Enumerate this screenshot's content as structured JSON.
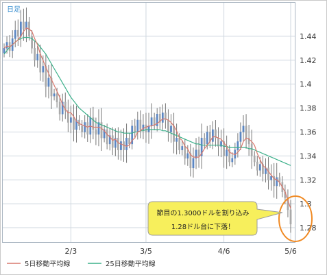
{
  "chart_data": {
    "type": "candlestick",
    "period_label": "日足",
    "y_ticks": [
      "1.28",
      "1.3",
      "1.32",
      "1.34",
      "1.36",
      "1.38",
      "1.4",
      "1.42",
      "1.44"
    ],
    "y_tick_values": [
      1.28,
      1.3,
      1.32,
      1.34,
      1.36,
      1.38,
      1.4,
      1.42,
      1.44
    ],
    "ylim": [
      1.268,
      1.468
    ],
    "x_ticks": [
      {
        "label": "2/3",
        "index": 24
      },
      {
        "label": "3/5",
        "index": 51
      },
      {
        "label": "4/6",
        "index": 79
      },
      {
        "label": "5/6",
        "index": 103
      }
    ],
    "grid": true,
    "legend_position": "bottom",
    "legend": [
      {
        "label": "5日移動平均線",
        "color": "#d9796e"
      },
      {
        "label": "25日移動平均線",
        "color": "#3cb08a"
      }
    ],
    "colors": {
      "up": "#5b86c2",
      "down": "#a9a9a9",
      "ma5": "#d9796e",
      "ma25": "#3cb08a",
      "grid": "#cfd7df",
      "highlight": "#f08a24",
      "callout_fill": "#f7ef5c"
    },
    "annotation": {
      "line1": "節目の1.3000ドルを割り込み",
      "line2": "1.28ドル台に下落！"
    },
    "closes": [
      1.43,
      1.435,
      1.428,
      1.438,
      1.445,
      1.44,
      1.452,
      1.446,
      1.452,
      1.44,
      1.43,
      1.42,
      1.425,
      1.41,
      1.415,
      1.398,
      1.405,
      1.39,
      1.392,
      1.385,
      1.375,
      1.385,
      1.378,
      1.368,
      1.372,
      1.362,
      1.37,
      1.365,
      1.36,
      1.368,
      1.358,
      1.372,
      1.362,
      1.358,
      1.368,
      1.355,
      1.362,
      1.35,
      1.357,
      1.347,
      1.355,
      1.345,
      1.352,
      1.345,
      1.355,
      1.35,
      1.365,
      1.36,
      1.37,
      1.362,
      1.366,
      1.36,
      1.365,
      1.372,
      1.365,
      1.375,
      1.368,
      1.376,
      1.37,
      1.36,
      1.365,
      1.352,
      1.355,
      1.345,
      1.348,
      1.338,
      1.342,
      1.33,
      1.338,
      1.345,
      1.34,
      1.355,
      1.35,
      1.36,
      1.352,
      1.362,
      1.355,
      1.348,
      1.352,
      1.34,
      1.345,
      1.335,
      1.338,
      1.345,
      1.352,
      1.36,
      1.365,
      1.355,
      1.35,
      1.34,
      1.335,
      1.328,
      1.333,
      1.325,
      1.33,
      1.32,
      1.323,
      1.315,
      1.322,
      1.318,
      1.31,
      1.305,
      1.295,
      1.283
    ],
    "ma5": [
      1.43,
      1.432,
      1.431,
      1.433,
      1.435,
      1.437,
      1.44,
      1.444,
      1.447,
      1.446,
      1.444,
      1.438,
      1.433,
      1.425,
      1.42,
      1.414,
      1.409,
      1.404,
      1.399,
      1.394,
      1.389,
      1.383,
      1.379,
      1.376,
      1.376,
      1.373,
      1.369,
      1.367,
      1.366,
      1.365,
      1.364,
      1.365,
      1.364,
      1.364,
      1.364,
      1.363,
      1.361,
      1.358,
      1.356,
      1.353,
      1.354,
      1.351,
      1.35,
      1.349,
      1.348,
      1.349,
      1.353,
      1.355,
      1.36,
      1.361,
      1.363,
      1.364,
      1.365,
      1.365,
      1.366,
      1.367,
      1.369,
      1.371,
      1.371,
      1.37,
      1.368,
      1.365,
      1.361,
      1.355,
      1.353,
      1.348,
      1.346,
      1.341,
      1.339,
      1.339,
      1.339,
      1.342,
      1.346,
      1.349,
      1.352,
      1.356,
      1.356,
      1.355,
      1.354,
      1.351,
      1.348,
      1.343,
      1.342,
      1.341,
      1.343,
      1.346,
      1.352,
      1.355,
      1.354,
      1.352,
      1.349,
      1.342,
      1.337,
      1.332,
      1.33,
      1.327,
      1.324,
      1.321,
      1.32,
      1.318,
      1.314,
      1.31,
      1.303,
      1.296
    ],
    "ma25": [
      1.425,
      1.428,
      1.431,
      1.433,
      1.435,
      1.437,
      1.438,
      1.439,
      1.439,
      1.439,
      1.438,
      1.436,
      1.434,
      1.431,
      1.428,
      1.425,
      1.421,
      1.417,
      1.413,
      1.409,
      1.405,
      1.401,
      1.397,
      1.393,
      1.389,
      1.386,
      1.383,
      1.38,
      1.378,
      1.376,
      1.374,
      1.372,
      1.37,
      1.368,
      1.367,
      1.366,
      1.365,
      1.364,
      1.363,
      1.362,
      1.361,
      1.36,
      1.36,
      1.359,
      1.359,
      1.359,
      1.359,
      1.36,
      1.36,
      1.361,
      1.361,
      1.362,
      1.362,
      1.362,
      1.362,
      1.362,
      1.362,
      1.361,
      1.361,
      1.36,
      1.359,
      1.358,
      1.357,
      1.356,
      1.355,
      1.354,
      1.353,
      1.352,
      1.351,
      1.35,
      1.35,
      1.349,
      1.349,
      1.349,
      1.349,
      1.349,
      1.349,
      1.349,
      1.349,
      1.348,
      1.348,
      1.347,
      1.347,
      1.347,
      1.347,
      1.347,
      1.347,
      1.347,
      1.346,
      1.346,
      1.345,
      1.344,
      1.343,
      1.342,
      1.341,
      1.34,
      1.339,
      1.338,
      1.337,
      1.336,
      1.335,
      1.334,
      1.333,
      1.332
    ]
  }
}
